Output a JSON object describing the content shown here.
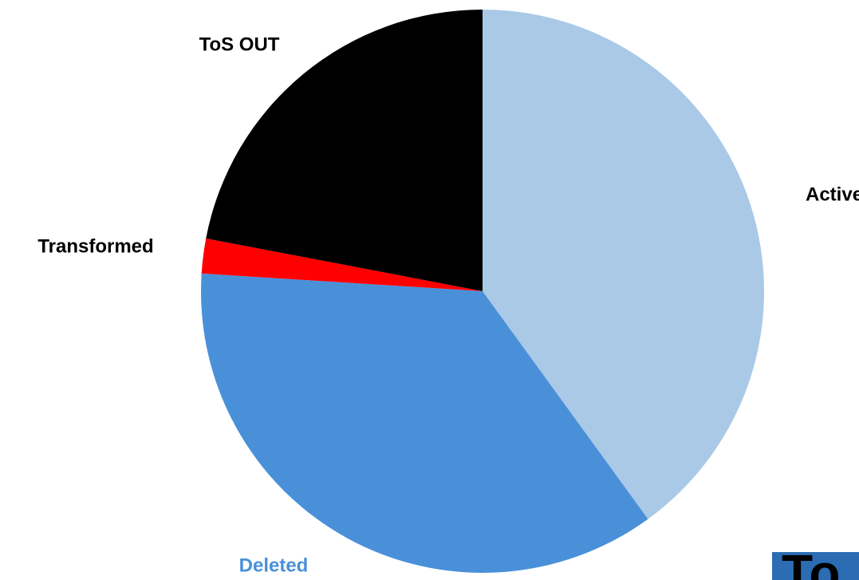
{
  "chart_data": {
    "type": "pie",
    "categories": [
      "Active",
      "Deleted",
      "Transformed",
      "ToS OUT"
    ],
    "values": [
      40,
      36,
      2,
      22
    ],
    "colors": [
      "#a9c9e7",
      "#4a90d9",
      "#ff0000",
      "#000000"
    ],
    "label_colors": [
      "#000000",
      "#4a90d9",
      "#000000",
      "#000000"
    ]
  },
  "corner_text": "To"
}
